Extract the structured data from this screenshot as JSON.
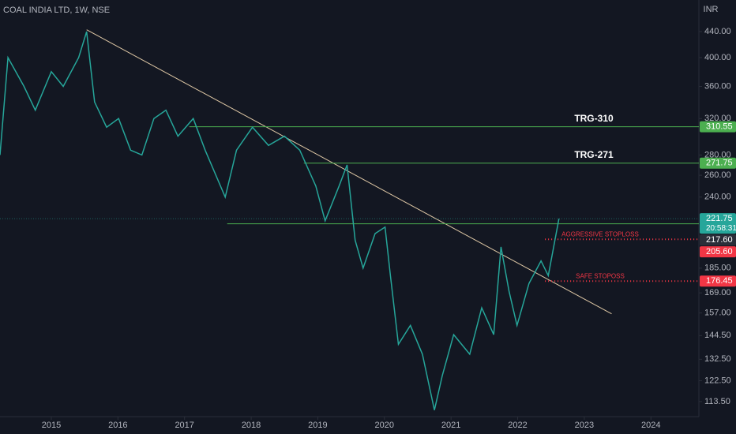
{
  "chart_data": {
    "type": "line",
    "title": "COAL INDIA LTD, 1W, NSE",
    "currency": "INR",
    "log_scale": true,
    "color": "#26a69a",
    "x": [
      2014.23,
      2014.35,
      2014.59,
      2014.76,
      2015.0,
      2015.18,
      2015.41,
      2015.53,
      2015.65,
      2015.83,
      2016.01,
      2016.19,
      2016.36,
      2016.54,
      2016.72,
      2016.9,
      2017.13,
      2017.31,
      2017.61,
      2017.78,
      2018.02,
      2018.26,
      2018.5,
      2018.73,
      2018.97,
      2019.11,
      2019.32,
      2019.44,
      2019.56,
      2019.68,
      2019.86,
      2020.01,
      2020.09,
      2020.21,
      2020.39,
      2020.57,
      2020.75,
      2020.87,
      2021.04,
      2021.28,
      2021.46,
      2021.64,
      2021.75,
      2021.87,
      2021.99,
      2022.17,
      2022.35,
      2022.46,
      2022.62
    ],
    "values": [
      280,
      400,
      360,
      330,
      380,
      360,
      400,
      440,
      340,
      310,
      320,
      285,
      280,
      320,
      330,
      300,
      320,
      285,
      240,
      285,
      310,
      290,
      300,
      285,
      250,
      220,
      250,
      270,
      205,
      185,
      210,
      215,
      180,
      140,
      150,
      135,
      110,
      125,
      145,
      135,
      160,
      145,
      200,
      170,
      150,
      175,
      190,
      180,
      221.75
    ],
    "xlim": [
      2014.23,
      2024.72
    ],
    "ylim": [
      107.4,
      494
    ],
    "xticks": [
      2015,
      2016,
      2017,
      2018,
      2019,
      2020,
      2021,
      2022,
      2023,
      2024
    ],
    "yticks": [
      {
        "value": 440,
        "label": "440.00"
      },
      {
        "value": 400,
        "label": "400.00"
      },
      {
        "value": 360,
        "label": "360.00"
      },
      {
        "value": 320,
        "label": "320.00"
      },
      {
        "value": 280,
        "label": "280.00"
      },
      {
        "value": 260,
        "label": "260.00"
      },
      {
        "value": 240,
        "label": "240.00"
      },
      {
        "value": 185,
        "label": "185.00"
      },
      {
        "value": 169,
        "label": "169.00"
      },
      {
        "value": 157,
        "label": "157.00"
      },
      {
        "value": 144.5,
        "label": "144.50"
      },
      {
        "value": 132.5,
        "label": "132.50"
      },
      {
        "value": 122.5,
        "label": "122.50"
      },
      {
        "value": 113.5,
        "label": "113.50"
      }
    ],
    "trendline": {
      "x": [
        2015.53,
        2023.41
      ],
      "values": [
        443,
        156.5
      ],
      "color": "#e0c9a6"
    },
    "last_price": 221.75,
    "countdown": "20:58:31",
    "levels": [
      {
        "label": "TRG-310",
        "value": 310.55,
        "start": 2017.07,
        "color": "#4caf50",
        "style": "solid"
      },
      {
        "label": "TRG-271",
        "value": 271.75,
        "start": 2018.79,
        "color": "#4caf50",
        "style": "solid"
      },
      {
        "value": 217.6,
        "value_label": "217.60",
        "start": 2017.64,
        "color": "#4caf50",
        "style": "solid"
      },
      {
        "label": "AGGRESSIVE STOPLOSS",
        "value": 205.6,
        "value_label": "205.60",
        "start": 2022.41,
        "color": "#f23645",
        "style": "dotted"
      },
      {
        "label": "SAFE STOPOSS",
        "value": 176.45,
        "start": 2022.41,
        "color": "#f23645",
        "style": "dotted"
      }
    ]
  }
}
